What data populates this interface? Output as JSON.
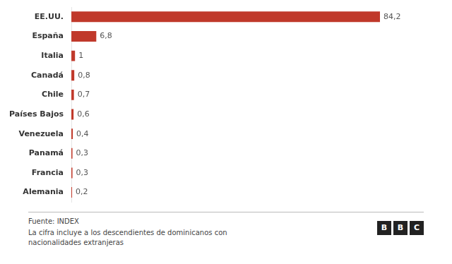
{
  "chart_data": {
    "type": "bar",
    "orientation": "horizontal",
    "categories": [
      "EE.UU.",
      "España",
      "Italia",
      "Canadá",
      "Chile",
      "Países Bajos",
      "Venezuela",
      "Panamá",
      "Francia",
      "Alemania"
    ],
    "values": [
      84.2,
      6.8,
      1.0,
      0.8,
      0.7,
      0.6,
      0.4,
      0.3,
      0.3,
      0.2
    ],
    "value_labels": [
      "84,2",
      "6,8",
      "1",
      "0,8",
      "0,7",
      "0,6",
      "0,4",
      "0,3",
      "0,3",
      "0,2"
    ],
    "color": "#c0392b",
    "xlim": [
      0,
      100
    ],
    "data_labels": true,
    "tick_labels": "y",
    "grid": false,
    "legend": false,
    "annotations": [
      "Fuente: INDEX",
      "La cifra incluye a los descendientes de dominicanos con\nnacionalidades extranjeras",
      "BBC"
    ]
  }
}
